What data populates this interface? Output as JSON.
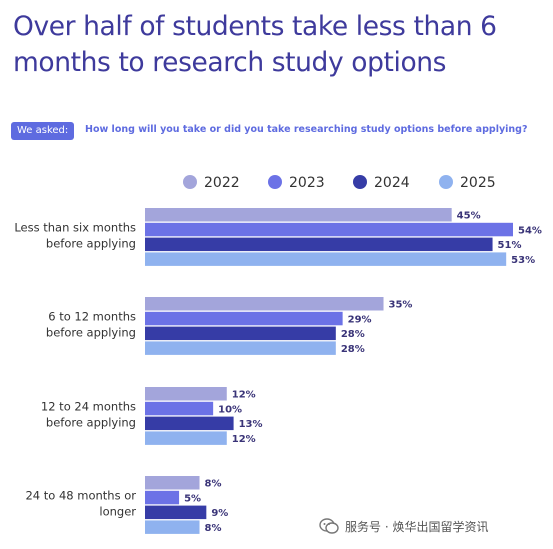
{
  "title": "Over half of students take less than 6 months to research study options",
  "asked_label": "We asked:",
  "question": "How long will you take or did you take researching study options before applying?",
  "watermark": "服务号 · 焕华出国留学资讯",
  "colors": {
    "title": "#3e3a9c",
    "accent": "#5e6be0",
    "s2022": "#a3a5db",
    "s2023": "#6c72e6",
    "s2024": "#363ca6",
    "s2025": "#8fb2ef"
  },
  "chart_data": {
    "type": "bar",
    "orientation": "horizontal",
    "categories": [
      [
        "Less than six months",
        "before applying"
      ],
      [
        "6 to 12 months",
        "before applying"
      ],
      [
        "12 to 24 months",
        "before applying"
      ],
      [
        "24 to 48 months or",
        "longer"
      ]
    ],
    "series": [
      {
        "name": "2022",
        "values": [
          45,
          35,
          12,
          8
        ]
      },
      {
        "name": "2023",
        "values": [
          54,
          29,
          10,
          5
        ]
      },
      {
        "name": "2024",
        "values": [
          51,
          28,
          13,
          9
        ]
      },
      {
        "name": "2025",
        "values": [
          53,
          28,
          12,
          8
        ]
      }
    ],
    "value_suffix": "%",
    "legend_position": "top-right",
    "grid": false,
    "xlim": [
      0,
      54
    ]
  }
}
